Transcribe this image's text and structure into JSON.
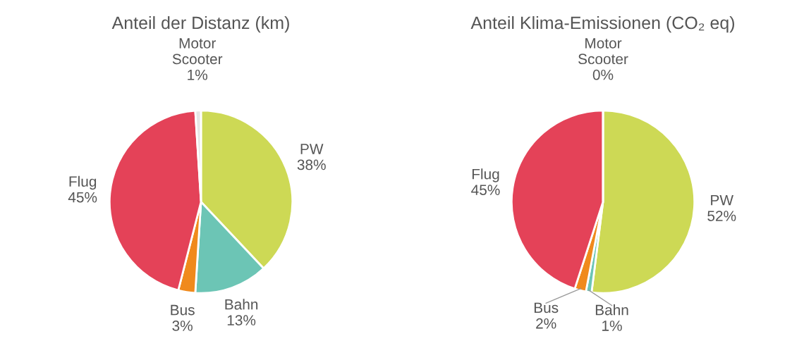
{
  "chart_data": [
    {
      "type": "pie",
      "title": "Anteil der Distanz (km)",
      "categories": [
        "PW",
        "Bahn",
        "Bus",
        "Flug",
        "Motor\nScooter"
      ],
      "values": [
        38,
        13,
        3,
        45,
        1
      ],
      "value_labels": [
        "38%",
        "13%",
        "3%",
        "45%",
        "1%"
      ],
      "colors": [
        "#cdd955",
        "#6cc5b5",
        "#f08a1c",
        "#e44258",
        "#e6e6e6"
      ]
    },
    {
      "type": "pie",
      "title": "Anteil Klima-Emissionen (CO₂ eq)",
      "categories": [
        "PW",
        "Bahn",
        "Bus",
        "Flug",
        "Motor\nScooter"
      ],
      "values": [
        52,
        1,
        2,
        45,
        0
      ],
      "value_labels": [
        "52%",
        "1%",
        "2%",
        "45%",
        "0%"
      ],
      "colors": [
        "#cdd955",
        "#6cc5b5",
        "#f08a1c",
        "#e44258",
        "#e6e6e6"
      ]
    }
  ]
}
